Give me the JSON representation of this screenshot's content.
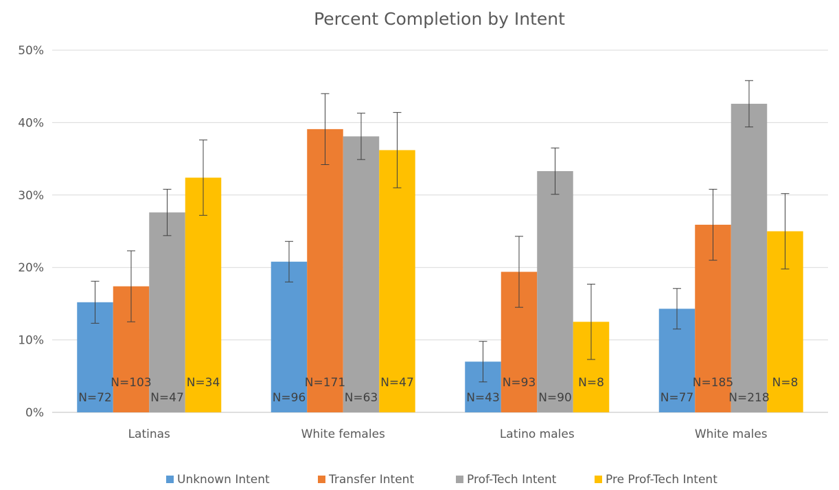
{
  "chart_data": {
    "type": "bar",
    "title": "Percent Completion by Intent",
    "xlabel": "",
    "ylabel": "",
    "ylim": [
      0,
      50
    ],
    "yticks": [
      0,
      10,
      20,
      30,
      40,
      50
    ],
    "ytick_labels": [
      "0%",
      "10%",
      "20%",
      "30%",
      "40%",
      "50%"
    ],
    "grid": true,
    "legend": "bottom",
    "categories": [
      "Latinas",
      "White females",
      "Latino males",
      "White males"
    ],
    "series": [
      {
        "name": "Unknown Intent",
        "color": "#5b9bd5",
        "values": [
          15.2,
          20.8,
          7.0,
          14.3
        ],
        "error": [
          2.9,
          2.8,
          2.8,
          2.8
        ],
        "n_labels": [
          "N=72",
          "N=96",
          "N=43",
          "N=77"
        ]
      },
      {
        "name": "Transfer Intent",
        "color": "#ed7d31",
        "values": [
          17.4,
          39.1,
          19.4,
          25.9
        ],
        "error": [
          4.9,
          4.9,
          4.9,
          4.9
        ],
        "n_labels": [
          "N=103",
          "N=171",
          "N=93",
          "N=185"
        ]
      },
      {
        "name": "Prof-Tech Intent",
        "color": "#a5a5a5",
        "values": [
          27.6,
          38.1,
          33.3,
          42.6
        ],
        "error": [
          3.2,
          3.2,
          3.2,
          3.2
        ],
        "n_labels": [
          "N=47",
          "N=63",
          "N=90",
          "N=218"
        ]
      },
      {
        "name": "Pre Prof-Tech Intent",
        "color": "#ffc000",
        "values": [
          32.4,
          36.2,
          12.5,
          25.0
        ],
        "error": [
          5.2,
          5.2,
          5.2,
          5.2
        ],
        "n_labels": [
          "N=34",
          "N=47",
          "N=8",
          "N=8"
        ]
      }
    ]
  }
}
